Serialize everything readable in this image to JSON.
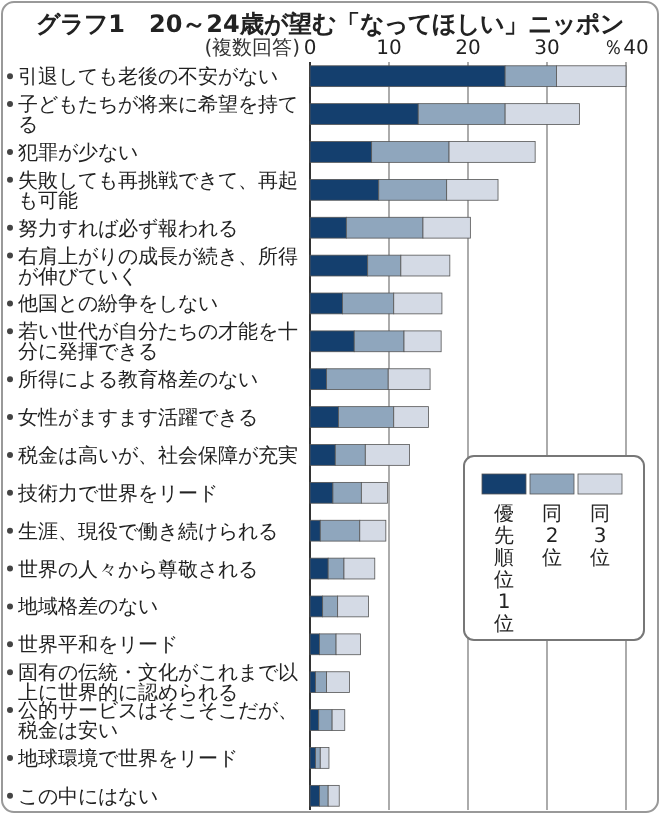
{
  "chart_data": {
    "type": "bar",
    "orientation": "horizontal",
    "stacked": true,
    "title": "グラフ1　20～24歳が望む「なってほしい」ニッポン",
    "annotations": [
      "(複数回答)"
    ],
    "categories": [
      "引退しても老後の不安がない",
      "子どもたちが将来に希望を持てる",
      "犯罪が少ない",
      "失敗しても再挑戦できて、再起も可能",
      "努力すれば必ず報われる",
      "右肩上がりの成長が続き、所得が伸びていく",
      "他国との紛争をしない",
      "若い世代が自分たちの才能を十分に発揮できる",
      "所得による教育格差のない",
      "女性がますます活躍できる",
      "税金は高いが、社会保障が充実",
      "技術力で世界をリード",
      "生涯、現役で働き続けられる",
      "世界の人々から尊敬される",
      "地域格差のない",
      "世界平和をリード",
      "固有の伝統・文化がこれまで以上に世界的に認められる",
      "公的サービスはそこそこだが、税金は安い",
      "地球環境で世界をリード",
      "この中にはない"
    ],
    "series": [
      {
        "name": "優先順位1位",
        "color": "#143f6e",
        "values": [
          24.7,
          13.7,
          7.8,
          8.7,
          4.6,
          7.3,
          4.1,
          5.6,
          2.1,
          3.6,
          3.2,
          2.9,
          1.3,
          2.3,
          1.6,
          1.2,
          0.7,
          1.1,
          0.7,
          1.2
        ]
      },
      {
        "name": "同2位",
        "color": "#8fa6bd",
        "values": [
          6.5,
          11.0,
          9.8,
          8.6,
          9.7,
          4.2,
          6.5,
          6.3,
          7.8,
          7.0,
          3.8,
          3.6,
          5.0,
          2.0,
          1.9,
          2.1,
          1.4,
          1.7,
          0.6,
          1.1
        ]
      },
      {
        "name": "同3位",
        "color": "#d4dae5",
        "values": [
          8.8,
          9.4,
          10.9,
          6.5,
          6.0,
          6.2,
          6.1,
          4.7,
          5.3,
          4.4,
          5.6,
          3.3,
          3.3,
          3.9,
          3.9,
          3.1,
          2.9,
          1.6,
          1.1,
          1.4
        ]
      }
    ],
    "xlim": [
      0,
      40
    ],
    "xticks": [
      0,
      10,
      20,
      30,
      {
        "value": 40,
        "label": "％40"
      }
    ],
    "grid": "x",
    "legend": "bottom right"
  }
}
